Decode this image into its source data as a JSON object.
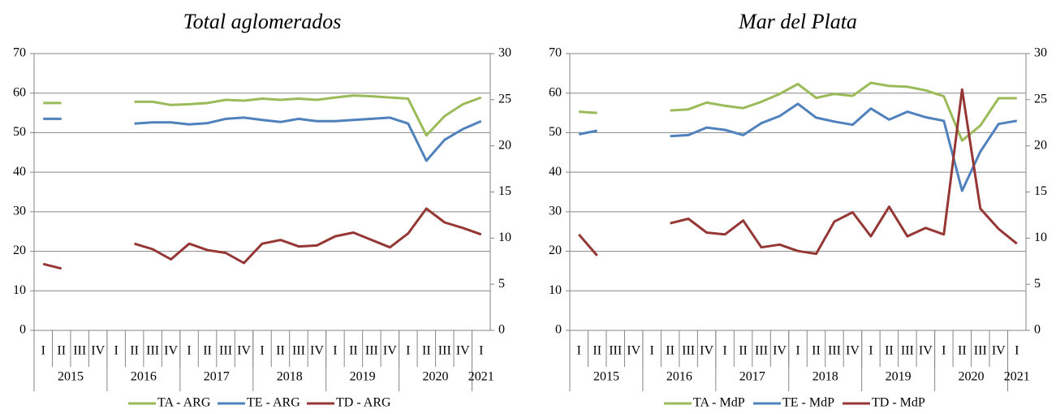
{
  "chart_data": [
    {
      "type": "line",
      "title": "Total aglomerados",
      "categories": [
        "I",
        "II",
        "III",
        "IV",
        "I",
        "II",
        "III",
        "IV",
        "I",
        "II",
        "III",
        "IV",
        "I",
        "II",
        "III",
        "IV",
        "I",
        "II",
        "III",
        "IV",
        "I",
        "II",
        "III",
        "IV",
        "I"
      ],
      "category_groups": [
        {
          "label": "2015",
          "count": 4
        },
        {
          "label": "2016",
          "count": 4
        },
        {
          "label": "2017",
          "count": 4
        },
        {
          "label": "2018",
          "count": 4
        },
        {
          "label": "2019",
          "count": 4
        },
        {
          "label": "2020",
          "count": 4
        },
        {
          "label": "2021",
          "count": 1
        }
      ],
      "ylim": [
        0,
        70
      ],
      "yticks": [
        0,
        10,
        20,
        30,
        40,
        50,
        60,
        70
      ],
      "y2lim": [
        0,
        30
      ],
      "y2ticks": [
        0,
        5,
        10,
        15,
        20,
        25,
        30
      ],
      "grid": true,
      "series": [
        {
          "name": "TA - ARG",
          "color": "#9bbb59",
          "values": [
            57.5,
            57.5,
            null,
            null,
            null,
            57.8,
            57.8,
            57.0,
            57.2,
            57.5,
            58.3,
            58.1,
            58.6,
            58.3,
            58.6,
            58.3,
            58.9,
            59.4,
            59.2,
            58.9,
            58.6,
            49.3,
            54.2,
            57.2,
            58.9
          ]
        },
        {
          "name": "TE - ARG",
          "color": "#4f81bd",
          "values": [
            53.5,
            53.5,
            null,
            null,
            null,
            52.3,
            52.6,
            52.6,
            52.1,
            52.4,
            53.5,
            53.8,
            53.2,
            52.7,
            53.5,
            52.9,
            52.9,
            53.2,
            53.5,
            53.8,
            52.3,
            42.9,
            48.2,
            50.9,
            52.9
          ]
        },
        {
          "name": "TD - ARG",
          "color": "#953735",
          "axis": "y2",
          "values": [
            7.2,
            6.7,
            null,
            null,
            null,
            9.4,
            8.8,
            7.7,
            9.4,
            8.7,
            8.4,
            7.3,
            9.4,
            9.8,
            9.1,
            9.2,
            10.2,
            10.6,
            9.8,
            9.0,
            10.5,
            13.2,
            11.7,
            11.1,
            10.4
          ]
        }
      ]
    },
    {
      "type": "line",
      "title": "Mar del Plata",
      "categories": [
        "I",
        "II",
        "III",
        "IV",
        "I",
        "II",
        "III",
        "IV",
        "I",
        "II",
        "III",
        "IV",
        "I",
        "II",
        "III",
        "IV",
        "I",
        "II",
        "III",
        "IV",
        "I",
        "II",
        "III",
        "IV",
        "I"
      ],
      "category_groups": [
        {
          "label": "2015",
          "count": 4
        },
        {
          "label": "2016",
          "count": 4
        },
        {
          "label": "2017",
          "count": 4
        },
        {
          "label": "2018",
          "count": 4
        },
        {
          "label": "2019",
          "count": 4
        },
        {
          "label": "2020",
          "count": 4
        },
        {
          "label": "2021",
          "count": 1
        }
      ],
      "ylim": [
        0,
        70
      ],
      "yticks": [
        0,
        10,
        20,
        30,
        40,
        50,
        60,
        70
      ],
      "y2lim": [
        0,
        30
      ],
      "y2ticks": [
        0,
        5,
        10,
        15,
        20,
        25,
        30
      ],
      "grid": true,
      "series": [
        {
          "name": "TA - MdP",
          "color": "#9bbb59",
          "values": [
            55.3,
            55.0,
            null,
            null,
            null,
            55.6,
            55.9,
            57.6,
            56.8,
            56.2,
            57.8,
            59.8,
            62.3,
            58.8,
            59.8,
            59.3,
            62.6,
            61.8,
            61.6,
            60.7,
            59.2,
            48.0,
            51.8,
            58.7,
            58.7
          ]
        },
        {
          "name": "TE - MdP",
          "color": "#4f81bd",
          "values": [
            49.6,
            50.5,
            null,
            null,
            null,
            49.1,
            49.4,
            51.3,
            50.7,
            49.4,
            52.4,
            54.2,
            57.3,
            53.8,
            52.8,
            52.0,
            56.1,
            53.3,
            55.3,
            53.9,
            53.0,
            35.3,
            45.2,
            52.2,
            53.0
          ]
        },
        {
          "name": "TD - MdP",
          "color": "#953735",
          "axis": "y2",
          "values": [
            10.4,
            8.1,
            null,
            null,
            null,
            11.6,
            12.1,
            10.6,
            10.4,
            11.9,
            9.0,
            9.3,
            8.6,
            8.3,
            11.8,
            12.8,
            10.2,
            13.4,
            10.2,
            11.1,
            10.4,
            26.1,
            13.2,
            11.0,
            9.4
          ]
        }
      ]
    }
  ]
}
